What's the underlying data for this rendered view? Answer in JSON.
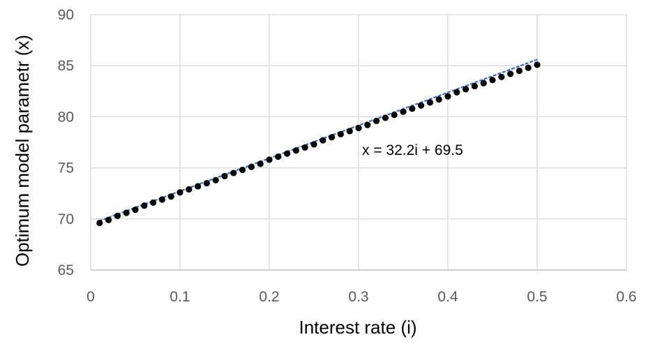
{
  "chart_data": {
    "type": "scatter",
    "title": "",
    "xlabel": "Interest rate (i)",
    "ylabel": "Optimum model parametr (x)",
    "xlim": [
      0,
      0.6
    ],
    "ylim": [
      65,
      90
    ],
    "xticks": [
      0,
      0.1,
      0.2,
      0.3,
      0.4,
      0.5,
      0.6
    ],
    "yticks": [
      65,
      70,
      75,
      80,
      85,
      90
    ],
    "xtick_labels": [
      "0",
      "0.1",
      "0.2",
      "0.3",
      "0.4",
      "0.5",
      "0.6"
    ],
    "ytick_labels": [
      "65",
      "70",
      "75",
      "80",
      "85",
      "90"
    ],
    "grid": true,
    "legend": "none",
    "annotation": "x = 32.2i + 69.5",
    "trendline": {
      "slope": 32.2,
      "intercept": 69.5,
      "style": "dotted",
      "color": "#4472c4"
    },
    "series": [
      {
        "marker_color": "#000000",
        "x": [
          0.01,
          0.02,
          0.03,
          0.04,
          0.05,
          0.06,
          0.07,
          0.08,
          0.09,
          0.1,
          0.11,
          0.12,
          0.13,
          0.14,
          0.15,
          0.16,
          0.17,
          0.18,
          0.19,
          0.2,
          0.21,
          0.22,
          0.23,
          0.24,
          0.25,
          0.26,
          0.27,
          0.28,
          0.29,
          0.3,
          0.31,
          0.32,
          0.33,
          0.34,
          0.35,
          0.36,
          0.37,
          0.38,
          0.39,
          0.4,
          0.41,
          0.42,
          0.43,
          0.44,
          0.45,
          0.46,
          0.47,
          0.48,
          0.49,
          0.5
        ],
        "y": [
          69.6,
          69.9,
          70.3,
          70.6,
          70.9,
          71.3,
          71.6,
          71.9,
          72.2,
          72.6,
          72.9,
          73.2,
          73.5,
          73.8,
          74.2,
          74.5,
          74.8,
          75.1,
          75.4,
          75.8,
          76.1,
          76.4,
          76.7,
          77.0,
          77.3,
          77.7,
          78.0,
          78.3,
          78.6,
          78.9,
          79.2,
          79.6,
          79.9,
          80.2,
          80.5,
          80.8,
          81.1,
          81.4,
          81.7,
          82.0,
          82.4,
          82.7,
          83.0,
          83.3,
          83.6,
          83.9,
          84.2,
          84.5,
          84.8,
          85.1
        ]
      }
    ]
  }
}
